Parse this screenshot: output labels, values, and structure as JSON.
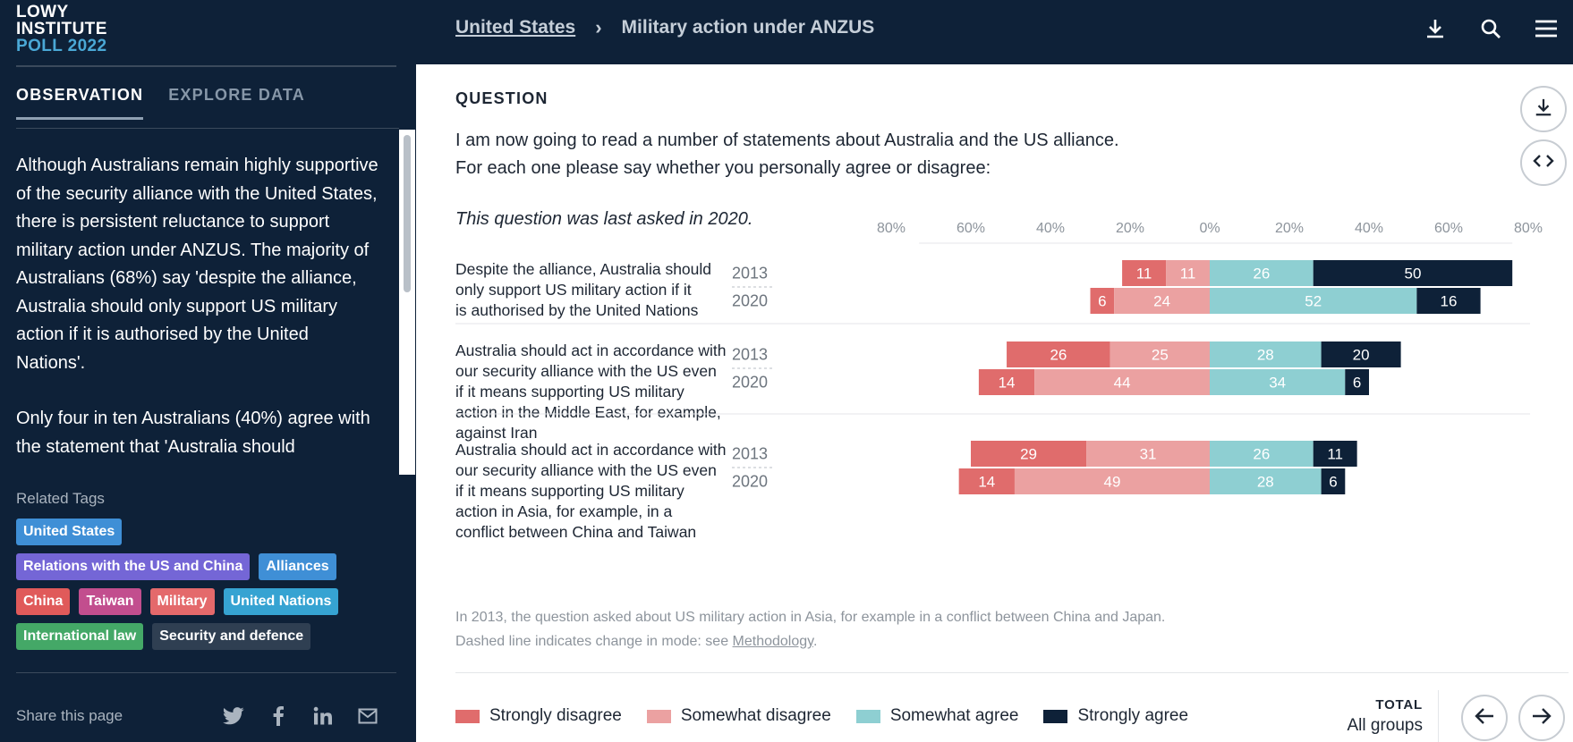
{
  "logo": {
    "line1": "LOWY",
    "line2": "INSTITUTE",
    "line3": "POLL 2022"
  },
  "sidebar": {
    "tabs": [
      {
        "label": "OBSERVATION",
        "active": true
      },
      {
        "label": "EXPLORE DATA",
        "active": false
      }
    ],
    "observation": [
      "Although Australians remain highly supportive of the security alliance with the United States, there is persistent reluctance to support military action under ANZUS. The majority of Australians (68%) say 'despite the alliance, Australia should only support US military action if it is authorised by the United Nations'.",
      "Only four in ten Australians (40%) agree with the statement that 'Australia should"
    ],
    "tags_title": "Related Tags",
    "tag_rows": [
      [
        {
          "label": "United States",
          "color": "#3f8fd6"
        }
      ],
      [
        {
          "label": "Relations with the US and China",
          "color": "#7466d6"
        },
        {
          "label": "Alliances",
          "color": "#3f8fd6"
        }
      ],
      [
        {
          "label": "China",
          "color": "#e05a5a"
        },
        {
          "label": "Taiwan",
          "color": "#c24e8e"
        },
        {
          "label": "Military",
          "color": "#e4696b"
        },
        {
          "label": "United Nations",
          "color": "#36a3d2"
        }
      ],
      [
        {
          "label": "International law",
          "color": "#44a867"
        },
        {
          "label": "Security and defence",
          "color": "#2f3f52"
        }
      ]
    ],
    "share_label": "Share this page",
    "share_icons": [
      "twitter-icon",
      "facebook-icon",
      "linkedin-icon",
      "mail-icon"
    ]
  },
  "header": {
    "breadcrumb_link": "United States",
    "breadcrumb_separator": "›",
    "breadcrumb_current": "Military action under ANZUS",
    "icons": [
      "download-icon",
      "search-icon",
      "menu-icon"
    ]
  },
  "question": {
    "label": "QUESTION",
    "text_line1": "I am now going to read a number of statements about Australia and the US alliance.",
    "text_line2": "For each one please say whether you personally agree or disagree:",
    "note": "This question was last asked in 2020."
  },
  "side_buttons": [
    "download-icon",
    "embed-code-icon"
  ],
  "footnote_line1": "In 2013, the question asked about US military action in Asia, for example in a conflict between China and Japan.",
  "footnote_line2_prefix": "Dashed line indicates change in mode: see ",
  "footnote_link": "Methodology",
  "footnote_line2_suffix": ".",
  "total": {
    "label": "TOTAL",
    "value": "All groups"
  },
  "nav_icons": [
    "arrow-left-icon",
    "arrow-right-icon"
  ],
  "chart_data": {
    "type": "bar",
    "orientation": "horizontal-diverging-stacked",
    "axis_ticks": [
      "80%",
      "60%",
      "40%",
      "20%",
      "0%",
      "20%",
      "40%",
      "60%",
      "80%"
    ],
    "xlim": [
      -80,
      80
    ],
    "series_names": [
      "Strongly disagree",
      "Somewhat disagree",
      "Somewhat agree",
      "Strongly agree"
    ],
    "colors": [
      "#e06c6c",
      "#eba1a1",
      "#8ecfd2",
      "#0e2138"
    ],
    "text_colors": [
      "#ffffff",
      "#ffffff",
      "#ffffff",
      "#ffffff"
    ],
    "groups": [
      {
        "statement": "Despite the alliance, Australia should only support US military action if it is authorised by the United Nations",
        "rows": [
          {
            "year": "2013",
            "values": [
              11,
              11,
              26,
              50
            ]
          },
          {
            "year": "2020",
            "values": [
              6,
              24,
              52,
              16
            ]
          }
        ]
      },
      {
        "statement": "Australia should act in accordance with our security alliance with the US even if it means supporting US military action in the Middle East, for example, against Iran",
        "rows": [
          {
            "year": "2013",
            "values": [
              26,
              25,
              28,
              20
            ]
          },
          {
            "year": "2020",
            "values": [
              14,
              44,
              34,
              6
            ]
          }
        ]
      },
      {
        "statement": "Australia should act in accordance with our security alliance with the US even if it means supporting US military action in Asia, for example, in a conflict between China and Taiwan",
        "rows": [
          {
            "year": "2013",
            "values": [
              29,
              31,
              26,
              11
            ]
          },
          {
            "year": "2020",
            "values": [
              14,
              49,
              28,
              6
            ]
          }
        ]
      }
    ]
  }
}
